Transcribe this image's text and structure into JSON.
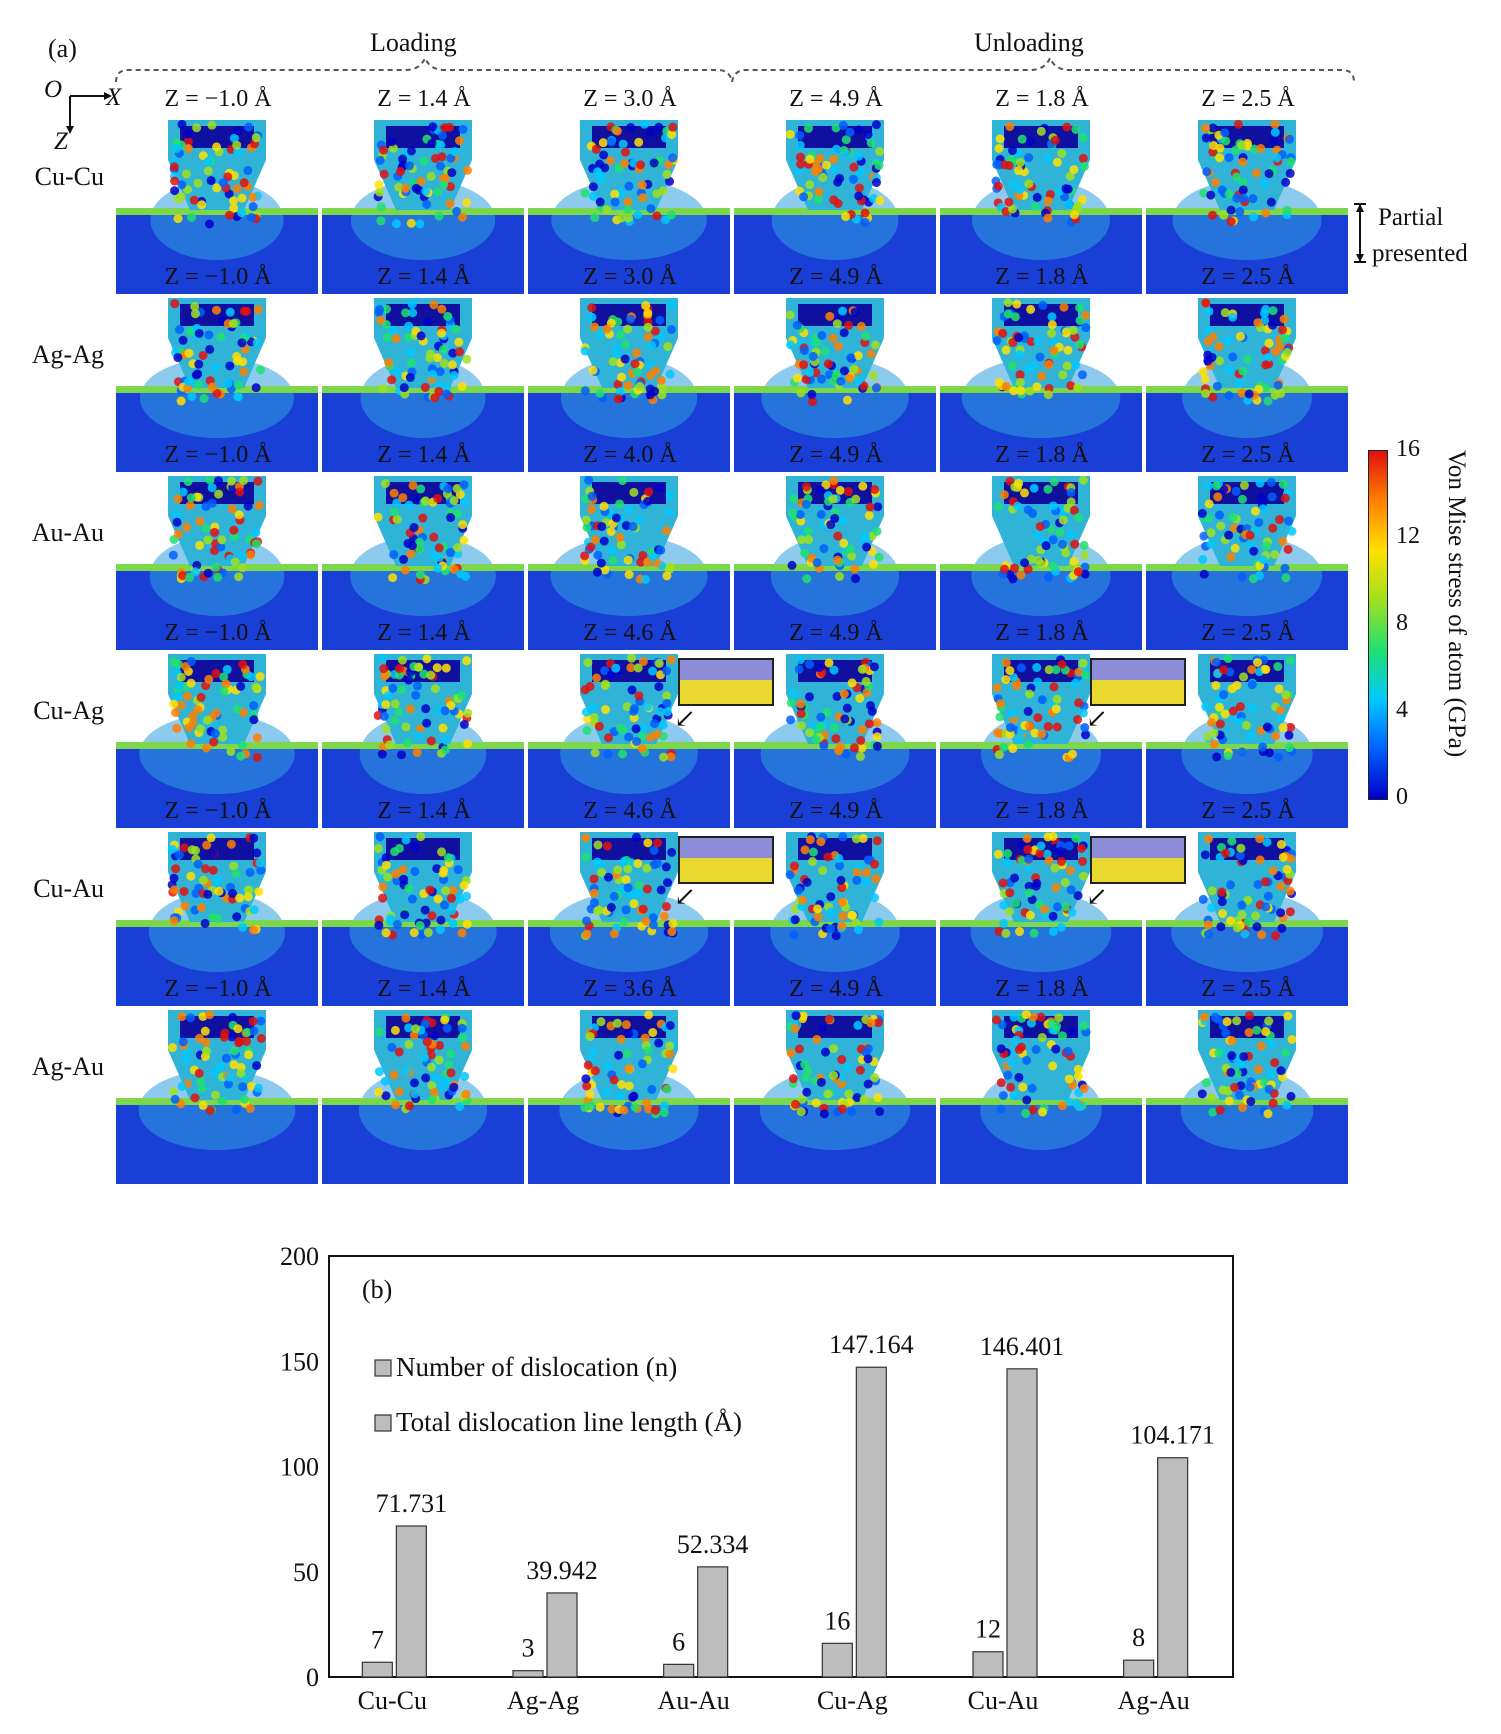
{
  "figure": {
    "panel_a_label": "(a)",
    "panel_b_label": "(b)",
    "phases": {
      "loading": "Loading",
      "unloading": "Unloading"
    },
    "axes_legend": {
      "origin": "O",
      "x": "X",
      "z": "Z"
    },
    "partial_note": [
      "Partial",
      "presented"
    ],
    "rows": [
      {
        "label": "Cu-Cu",
        "z": [
          "Z = −1.0 Å",
          "Z = 1.4 Å",
          "Z = 3.0 Å",
          "Z = 4.9 Å",
          "Z = 1.8 Å",
          "Z = 2.5 Å"
        ]
      },
      {
        "label": "Ag-Ag",
        "z": [
          "Z = −1.0 Å",
          "Z = 1.4 Å",
          "Z = 3.0 Å",
          "Z = 4.9 Å",
          "Z = 1.8 Å",
          "Z = 2.5 Å"
        ]
      },
      {
        "label": "Au-Au",
        "z": [
          "Z = −1.0 Å",
          "Z = 1.4 Å",
          "Z = 4.0 Å",
          "Z = 4.9 Å",
          "Z = 1.8 Å",
          "Z = 2.5 Å"
        ]
      },
      {
        "label": "Cu-Ag",
        "z": [
          "Z = −1.0 Å",
          "Z = 1.4 Å",
          "Z = 4.6 Å",
          "Z = 4.9 Å",
          "Z = 1.8 Å",
          "Z = 2.5 Å"
        ]
      },
      {
        "label": "Cu-Au",
        "z": [
          "Z = −1.0 Å",
          "Z = 1.4 Å",
          "Z = 4.6 Å",
          "Z = 4.9 Å",
          "Z = 1.8 Å",
          "Z = 2.5 Å"
        ]
      },
      {
        "label": "Ag-Au",
        "z": [
          "Z = −1.0 Å",
          "Z = 1.4 Å",
          "Z = 3.6 Å",
          "Z = 4.9 Å",
          "Z = 1.8 Å",
          "Z = 2.5 Å"
        ]
      }
    ],
    "colorbar": {
      "title": "Von Mise stress of atom (GPa)",
      "ticks": [
        "16",
        "12",
        "8",
        "4",
        "0"
      ],
      "min": 0,
      "max": 16,
      "colors": [
        "#0000c8",
        "#0060ff",
        "#00c8ff",
        "#20e070",
        "#a0e020",
        "#ffe000",
        "#ff8000",
        "#e01010"
      ]
    },
    "colors": {
      "background_blue": "#1a3fd6",
      "tip_dark": "#1010a0",
      "stress_red": "#e41a1c",
      "inset_yellow": "#e8d830",
      "inset_lavender": "#8c8cd8"
    }
  },
  "chart_data": {
    "type": "bar",
    "title": "(b)",
    "xlabel": "",
    "ylabel": "",
    "ylim": [
      0,
      200
    ],
    "yticks": [
      "0",
      "50",
      "100",
      "150",
      "200"
    ],
    "categories": [
      "Cu-Cu",
      "Ag-Ag",
      "Au-Au",
      "Cu-Ag",
      "Cu-Au",
      "Ag-Au"
    ],
    "series": [
      {
        "name": "Number of dislocation (n)",
        "values": [
          7,
          3,
          6,
          16,
          12,
          8
        ],
        "labels": [
          "7",
          "3",
          "6",
          "16",
          "12",
          "8"
        ],
        "color": "#bdbdbd"
      },
      {
        "name": "Total dislocation line length (Å)",
        "values": [
          71.731,
          39.942,
          52.334,
          147.164,
          146.401,
          104.171
        ],
        "labels": [
          "71.731",
          "39.942",
          "52.334",
          "147.164",
          "146.401",
          "104.171"
        ],
        "color": "#bdbdbd"
      }
    ],
    "legend": "top-left",
    "grid": false
  }
}
